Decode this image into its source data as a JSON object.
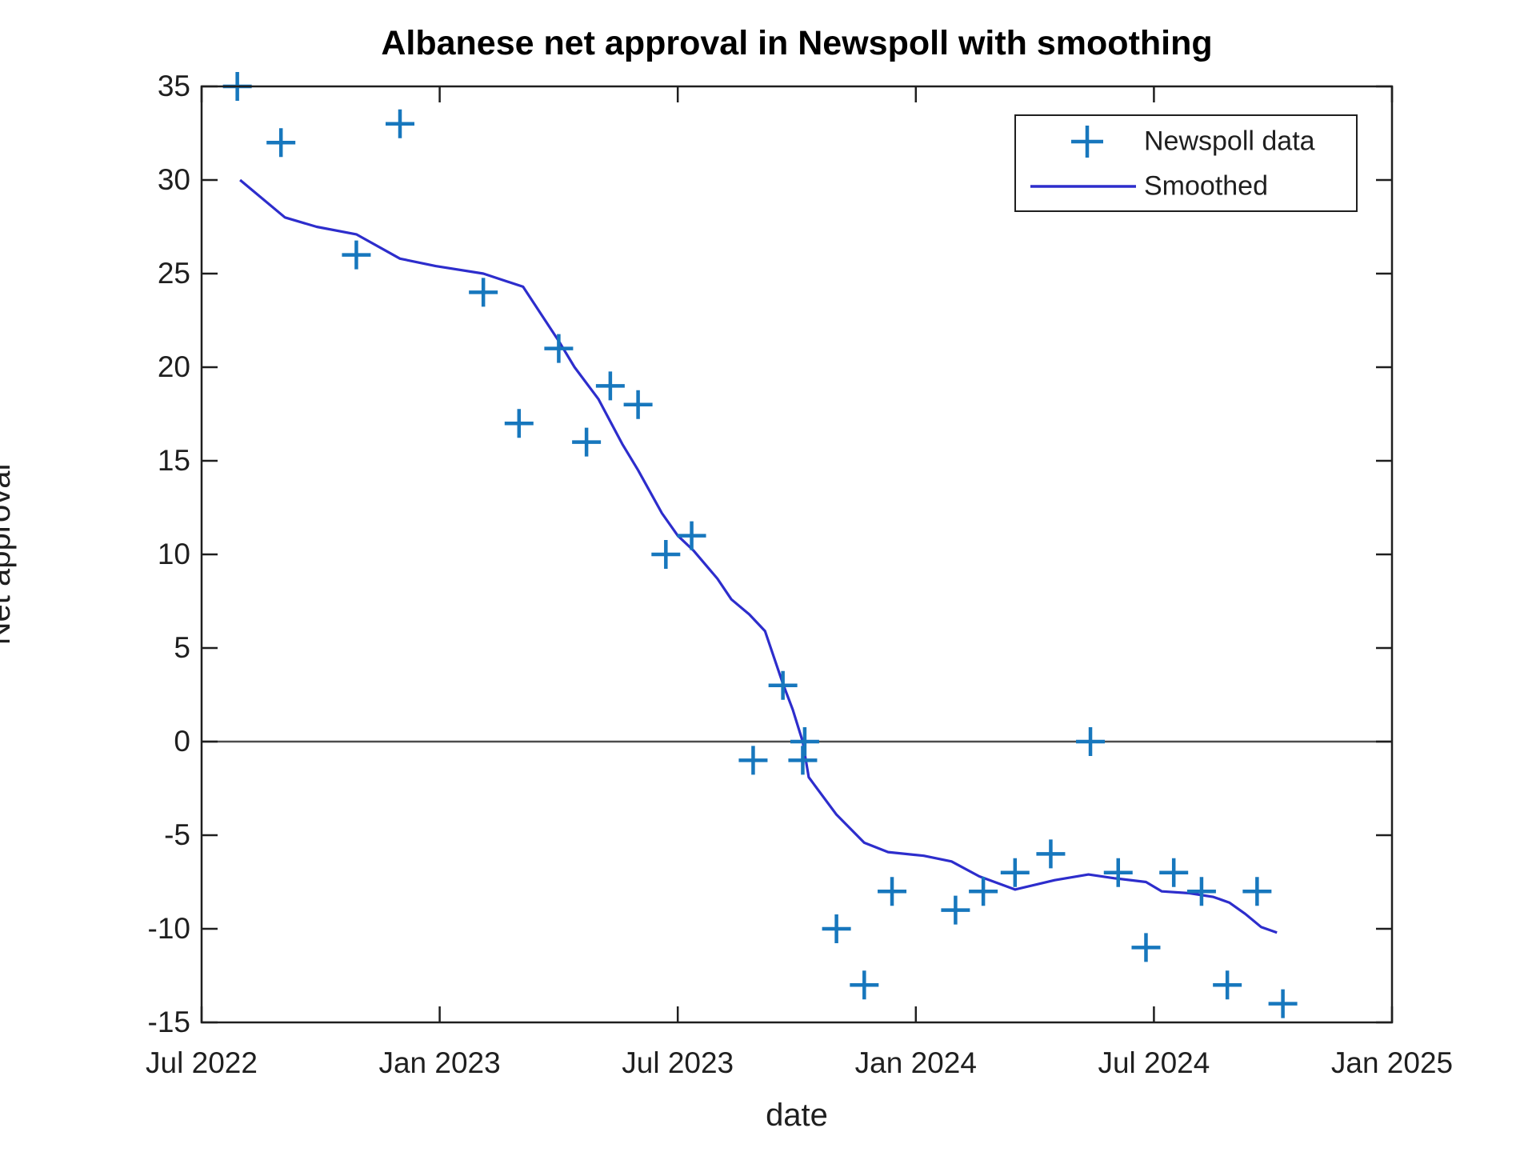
{
  "chart_data": {
    "type": "scatter+line",
    "title": "Albanese net approval in Newspoll with smoothing",
    "xlabel": "date",
    "ylabel": "Net approval",
    "x_axis_unit": "months since Jul 2022",
    "xlim_months": [
      0,
      30
    ],
    "ylim": [
      -15,
      35
    ],
    "grid": false,
    "zero_line": true,
    "legend_position": "top-right",
    "tick_direction": "in",
    "box": true,
    "colors": {
      "marker": "#1777bd",
      "line": "#2d2dcc",
      "axis": "#1f1f1f",
      "zero_line": "#4d4d4d",
      "background": "#ffffff"
    },
    "xticks": [
      {
        "m": 0,
        "label": "Jul 2022"
      },
      {
        "m": 6,
        "label": "Jan 2023"
      },
      {
        "m": 12,
        "label": "Jul 2023"
      },
      {
        "m": 18,
        "label": "Jan 2024"
      },
      {
        "m": 24,
        "label": "Jul 2024"
      },
      {
        "m": 30,
        "label": "Jan 2025"
      }
    ],
    "yticks": [
      -15,
      -10,
      -5,
      0,
      5,
      10,
      15,
      20,
      25,
      30,
      35
    ],
    "series": [
      {
        "name": "Newspoll data",
        "type": "scatter",
        "marker": "plus",
        "color": "#1777bd",
        "points": [
          {
            "date": "2022-07-27",
            "m": 0.9,
            "v": 35
          },
          {
            "date": "2022-08-31",
            "m": 2.0,
            "v": 32
          },
          {
            "date": "2022-10-28",
            "m": 3.9,
            "v": 26
          },
          {
            "date": "2022-12-01",
            "m": 5.0,
            "v": 33
          },
          {
            "date": "2023-02-03",
            "m": 7.1,
            "v": 24
          },
          {
            "date": "2023-03-01",
            "m": 8.0,
            "v": 17
          },
          {
            "date": "2023-03-30",
            "m": 9.0,
            "v": 21
          },
          {
            "date": "2023-04-21",
            "m": 9.7,
            "v": 16
          },
          {
            "date": "2023-05-10",
            "m": 10.3,
            "v": 19
          },
          {
            "date": "2023-05-31",
            "m": 11.0,
            "v": 18
          },
          {
            "date": "2023-06-21",
            "m": 11.7,
            "v": 10
          },
          {
            "date": "2023-07-11",
            "m": 12.35,
            "v": 11
          },
          {
            "date": "2023-08-28",
            "m": 13.9,
            "v": -1
          },
          {
            "date": "2023-09-20",
            "m": 14.65,
            "v": 3
          },
          {
            "date": "2023-10-05",
            "m": 15.15,
            "v": -1
          },
          {
            "date": "2023-10-06",
            "m": 15.2,
            "v": 0
          },
          {
            "date": "2023-11-01",
            "m": 16.0,
            "v": -10
          },
          {
            "date": "2023-11-22",
            "m": 16.7,
            "v": -13
          },
          {
            "date": "2023-12-13",
            "m": 17.4,
            "v": -8
          },
          {
            "date": "2024-02-01",
            "m": 19.0,
            "v": -9
          },
          {
            "date": "2024-02-22",
            "m": 19.7,
            "v": -8
          },
          {
            "date": "2024-03-16",
            "m": 20.5,
            "v": -7
          },
          {
            "date": "2024-04-12",
            "m": 21.4,
            "v": -6
          },
          {
            "date": "2024-05-13",
            "m": 22.4,
            "v": 0
          },
          {
            "date": "2024-06-03",
            "m": 23.1,
            "v": -7
          },
          {
            "date": "2024-06-25",
            "m": 23.8,
            "v": -11
          },
          {
            "date": "2024-07-16",
            "m": 24.5,
            "v": -7
          },
          {
            "date": "2024-08-06",
            "m": 25.2,
            "v": -8
          },
          {
            "date": "2024-08-26",
            "m": 25.85,
            "v": -13
          },
          {
            "date": "2024-09-18",
            "m": 26.6,
            "v": -8
          },
          {
            "date": "2024-10-08",
            "m": 27.25,
            "v": -14
          }
        ]
      },
      {
        "name": "Smoothed",
        "type": "line",
        "color": "#2d2dcc",
        "points": [
          [
            0.97,
            30.0
          ],
          [
            2.1,
            28.0
          ],
          [
            2.9,
            27.5
          ],
          [
            3.9,
            27.1
          ],
          [
            5.0,
            25.8
          ],
          [
            5.9,
            25.4
          ],
          [
            7.1,
            25.0
          ],
          [
            8.1,
            24.3
          ],
          [
            9.0,
            21.4
          ],
          [
            9.4,
            20.0
          ],
          [
            10.0,
            18.3
          ],
          [
            10.6,
            15.9
          ],
          [
            11.0,
            14.5
          ],
          [
            11.6,
            12.2
          ],
          [
            12.0,
            11.0
          ],
          [
            12.4,
            10.2
          ],
          [
            13.0,
            8.7
          ],
          [
            13.35,
            7.6
          ],
          [
            13.8,
            6.8
          ],
          [
            14.2,
            5.9
          ],
          [
            14.65,
            3.1
          ],
          [
            14.9,
            1.7
          ],
          [
            15.15,
            0.0
          ],
          [
            15.3,
            -1.9
          ],
          [
            16.0,
            -3.9
          ],
          [
            16.7,
            -5.4
          ],
          [
            17.3,
            -5.9
          ],
          [
            18.2,
            -6.1
          ],
          [
            18.9,
            -6.4
          ],
          [
            19.6,
            -7.2
          ],
          [
            20.5,
            -7.9
          ],
          [
            21.5,
            -7.4
          ],
          [
            22.35,
            -7.1
          ],
          [
            23.0,
            -7.3
          ],
          [
            23.8,
            -7.5
          ],
          [
            24.2,
            -8.0
          ],
          [
            24.9,
            -8.1
          ],
          [
            25.5,
            -8.3
          ],
          [
            25.9,
            -8.6
          ],
          [
            26.3,
            -9.2
          ],
          [
            26.7,
            -9.9
          ],
          [
            27.1,
            -10.2
          ]
        ]
      }
    ]
  }
}
